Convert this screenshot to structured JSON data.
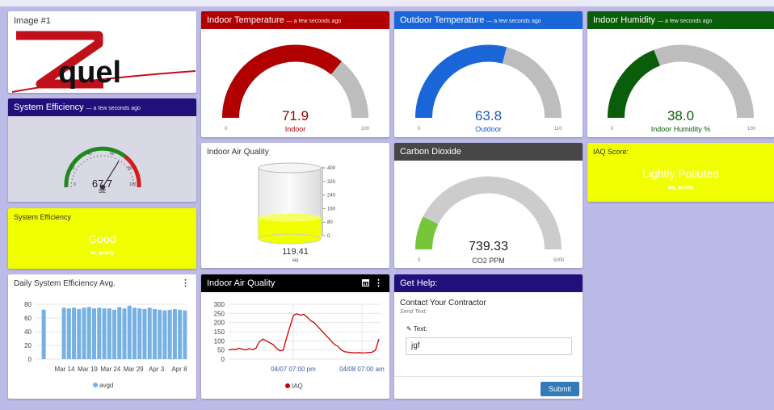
{
  "image_card": {
    "title": "Image #1",
    "logo_text": "quel"
  },
  "system_efficiency": {
    "title": "System Efficiency",
    "timestamp": "— a few seconds ago",
    "value": "67.7",
    "unit": "SE",
    "gauge_fraction": 0.677,
    "ticks": [
      "0",
      "20",
      "40",
      "60",
      "80",
      "100"
    ]
  },
  "efficiency_status": {
    "title": "System Efficiency",
    "value": "Good",
    "sub": "se_quality"
  },
  "daily_efficiency": {
    "title": "Daily System Efficiency Avg.",
    "legend": "avgd",
    "chart_data": {
      "type": "bar",
      "y_ticks": [
        "80",
        "60",
        "40",
        "20",
        "0"
      ],
      "ylim": [
        0,
        80
      ],
      "x_ticks": [
        "Mar 14",
        "Mar 19",
        "Mar 24",
        "Mar 29",
        "Apr 3",
        "Apr 8"
      ],
      "series": [
        {
          "name": "avgd",
          "values": [
            72,
            0,
            0,
            0,
            75,
            74,
            75,
            73,
            75,
            76,
            74,
            75,
            74,
            74,
            72,
            76,
            74,
            78,
            75,
            74,
            73,
            75,
            73,
            72,
            71,
            72,
            73,
            72,
            71
          ]
        }
      ]
    }
  },
  "indoor_temp": {
    "title": "Indoor Temperature",
    "timestamp": "— a few seconds ago",
    "value": "71.9",
    "label": "Indoor",
    "min": "0",
    "max": "100",
    "fraction": 0.719
  },
  "outdoor_temp": {
    "title": "Outdoor Temperature",
    "timestamp": "— a few seconds ago",
    "value": "63.8",
    "label": "Outdoor",
    "min": "0",
    "max": "110",
    "fraction": 0.58
  },
  "indoor_humidity": {
    "title": "Indoor Humidity",
    "timestamp": "— a few seconds ago",
    "value": "38.0",
    "label": "Indoor Humidity %",
    "min": "0",
    "max": "100",
    "fraction": 0.38
  },
  "iaq_cylinder": {
    "title": "Indoor Air Quality",
    "value": "119.41",
    "unit": "iaq",
    "scale": [
      "400",
      "320",
      "240",
      "160",
      "80",
      "0"
    ],
    "fraction": 0.3
  },
  "co2": {
    "title": "Carbon Dioxide",
    "value": "739.33",
    "label": "CO2 PPM",
    "min": "0",
    "max": "5000",
    "fraction": 0.148
  },
  "iaq_score": {
    "title": "IAQ Score:",
    "value": "Lightly Polluted",
    "sub": "iaq_quality"
  },
  "iaq_chart": {
    "title": "Indoor Air Quality",
    "legend": "IAQ",
    "chart_data": {
      "type": "line",
      "y_ticks": [
        "300",
        "250",
        "200",
        "150",
        "100",
        "50",
        "0"
      ],
      "ylim": [
        0,
        300
      ],
      "x_ticks": [
        "04/07 07:00 pm",
        "04/08 07:00 am"
      ],
      "series": [
        {
          "name": "IAQ",
          "values": [
            50,
            55,
            52,
            60,
            55,
            50,
            58,
            52,
            60,
            95,
            110,
            100,
            90,
            80,
            60,
            45,
            50,
            120,
            180,
            240,
            248,
            240,
            245,
            230,
            210,
            200,
            180,
            160,
            140,
            120,
            100,
            80,
            70,
            50,
            40,
            38,
            36,
            34,
            36,
            34,
            35,
            36,
            38,
            50,
            110
          ]
        }
      ]
    }
  },
  "help": {
    "title": "Get Help:",
    "heading": "Contact Your Contractor",
    "sub": "Send Text:",
    "field_label": "Text:",
    "field_value": "jgf",
    "submit": "Submit"
  },
  "colors": {
    "indoor": "#b00000",
    "outdoor": "#1a66d9",
    "humidity": "#0a5e0a",
    "co2_header": "#474747",
    "navy": "#22107a",
    "yellow": "#f1ff00",
    "gauge_gray": "#bdbdbd",
    "bar_blue": "#77b1e3"
  }
}
